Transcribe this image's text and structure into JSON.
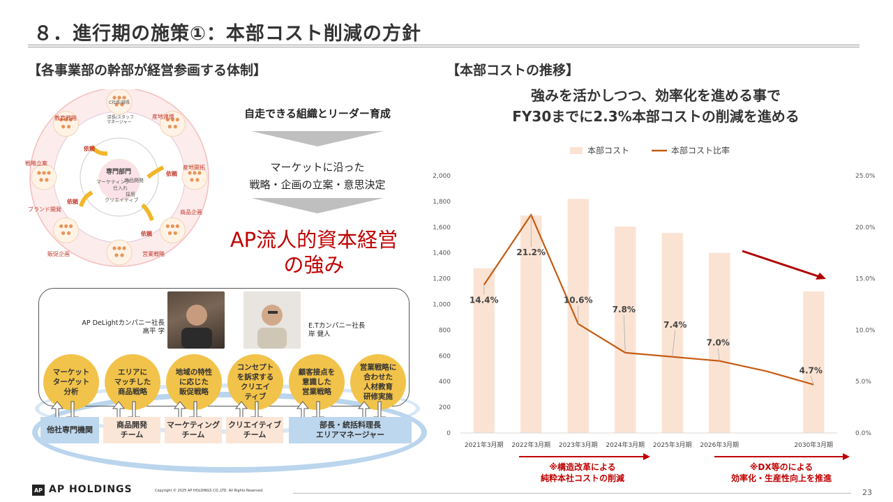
{
  "slide": {
    "title": "８．進行期の施策①：本部コスト削減の方針",
    "page_number": "23",
    "logo_text": "AP HOLDINGS",
    "logo_mark": "AP",
    "copyright": "Copyright © 2025 AP HOLDINGS CO.,LTD.  All Rights Reserved."
  },
  "left": {
    "heading": "【各事業部の幹部が経営参画する体制】",
    "lead": "自走できる組織とリーダー育成",
    "step2_line1": "マーケットに沿った",
    "step2_line2": "戦略・企画の立案・意思決定",
    "strength_line1": "AP流人的資本経営",
    "strength_line2": "の強み",
    "diagram": {
      "center": "専門部門",
      "center_items": [
        "マーケティング",
        "商品開発",
        "仕入れ",
        "採用",
        "クリエイティブ"
      ],
      "outer_labels": [
        "教育戦略",
        "産地連携",
        "戦略立案",
        "産地開拓",
        "ブランド開発",
        "商品企画",
        "販促企画",
        "営業戦略"
      ],
      "arrow_labels": [
        "依頼",
        "依頼",
        "依頼",
        "依頼"
      ],
      "node_top": "C社長/部長",
      "node_label": "マネージャー",
      "node_sub": "店長/スタッフ"
    },
    "people": [
      {
        "line1": "AP DeLightカンパニー社長",
        "line2": "高平 学"
      },
      {
        "line1": "E.Tカンパニー社長",
        "line2": "岸 健人"
      }
    ],
    "circles": [
      [
        "マーケット",
        "ターゲット",
        "分析"
      ],
      [
        "エリアに",
        "マッチした",
        "商品戦略"
      ],
      [
        "地域の特性",
        "に応じた",
        "販促戦略"
      ],
      [
        "コンセプト",
        "を訴求する",
        "クリエイ",
        "ティブ"
      ],
      [
        "顧客接点を",
        "意識した",
        "営業戦略"
      ],
      [
        "営業戦略に",
        "合わせた",
        "人材教育",
        "研修実施"
      ]
    ],
    "teams": [
      [
        "他社専門機関"
      ],
      [
        "商品開発",
        "チーム"
      ],
      [
        "マーケティング",
        "チーム"
      ],
      [
        "クリエイティブ",
        "チーム"
      ],
      [
        "部長・統括料理長",
        "エリアマネージャー"
      ]
    ]
  },
  "right": {
    "heading": "【本部コストの推移】",
    "headline1": "強みを活かしつつ、効率化を進める事で",
    "headline2": "FY30までに2.3%本部コストの削減を進める",
    "note1_line1": "※構造改革による",
    "note1_line2": "純粋本社コストの削減",
    "note2_line1": "※DX等のによる",
    "note2_line2": "効率化・生産性向上を推進"
  },
  "chart_data": {
    "type": "bar",
    "categories": [
      "2021年3月期",
      "2022年3月期",
      "2023年3月期",
      "2024年3月期",
      "2025年3月期",
      "2026年3月期",
      "",
      "2030年3月期"
    ],
    "series": [
      {
        "name": "本部コスト",
        "axis": "left",
        "type": "bar",
        "color": "#fbe3d3",
        "values": [
          1280,
          1690,
          1820,
          1605,
          1555,
          1400,
          null,
          1100
        ]
      },
      {
        "name": "本部コスト比率",
        "axis": "right",
        "type": "line",
        "color": "#c55a11",
        "values": [
          14.4,
          21.2,
          10.6,
          7.8,
          7.4,
          7.0,
          6.0,
          4.7
        ]
      }
    ],
    "data_labels": [
      "14.4%",
      "21.2%",
      "10.6%",
      "7.8%",
      "7.4%",
      "7.0%",
      "",
      "4.7%"
    ],
    "ylim_left": [
      0,
      2000
    ],
    "yticks_left": [
      "0",
      "200",
      "400",
      "600",
      "800",
      "1,000",
      "1,200",
      "1,400",
      "1,600",
      "1,800",
      "2,000"
    ],
    "ylim_right": [
      0,
      25
    ],
    "yticks_right": [
      "0.0%",
      "5.0%",
      "10.0%",
      "15.0%",
      "20.0%",
      "25.0%"
    ],
    "legend_position": "top",
    "grid": false
  }
}
